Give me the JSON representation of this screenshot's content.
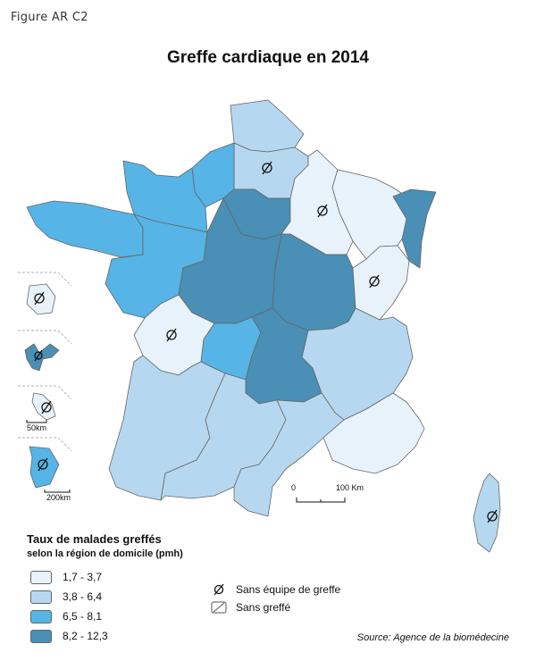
{
  "figure_label": "Figure AR C2",
  "title": "Greffe cardiaque en 2014",
  "legend": {
    "title": "Taux de malades greffés",
    "subtitle": "selon la région de domicile (pmh)",
    "classes": [
      {
        "label": "1,7 - 3,7",
        "color": "#e8f2fa"
      },
      {
        "label": "3,8 - 6,4",
        "color": "#b5d8f0"
      },
      {
        "label": "6,5 - 8,1",
        "color": "#56b4e6"
      },
      {
        "label": "8,2 - 12,3",
        "color": "#4a8fb5"
      }
    ],
    "symbols": [
      {
        "icon": "empty-set-icon",
        "label": "Sans équipe de greffe"
      },
      {
        "icon": "hatched-box-icon",
        "label": "Sans greffé"
      }
    ]
  },
  "scale": {
    "zero": "0",
    "label": "100 Km"
  },
  "inset_scales": [
    "50km",
    "200km"
  ],
  "regions": [
    {
      "name": "Nord-Pas-de-Calais",
      "class": 1,
      "no_team": false
    },
    {
      "name": "Picardie",
      "class": 1,
      "no_team": true
    },
    {
      "name": "Haute-Normandie",
      "class": 2,
      "no_team": false
    },
    {
      "name": "Basse-Normandie",
      "class": 2,
      "no_team": false
    },
    {
      "name": "Bretagne",
      "class": 2,
      "no_team": false
    },
    {
      "name": "Pays de la Loire",
      "class": 2,
      "no_team": false
    },
    {
      "name": "Ile-de-France",
      "class": 3,
      "no_team": false
    },
    {
      "name": "Centre",
      "class": 3,
      "no_team": false
    },
    {
      "name": "Champagne-Ardenne",
      "class": 0,
      "no_team": true
    },
    {
      "name": "Lorraine",
      "class": 0,
      "no_team": false
    },
    {
      "name": "Alsace",
      "class": 3,
      "no_team": false
    },
    {
      "name": "Bourgogne",
      "class": 3,
      "no_team": false
    },
    {
      "name": "Franche-Comté",
      "class": 0,
      "no_team": true
    },
    {
      "name": "Poitou-Charentes",
      "class": 0,
      "no_team": true
    },
    {
      "name": "Limousin",
      "class": 2,
      "no_team": false
    },
    {
      "name": "Auvergne",
      "class": 3,
      "no_team": false
    },
    {
      "name": "Rhône-Alpes",
      "class": 1,
      "no_team": false
    },
    {
      "name": "Aquitaine",
      "class": 1,
      "no_team": false
    },
    {
      "name": "Midi-Pyrénées",
      "class": 1,
      "no_team": false
    },
    {
      "name": "Languedoc-Roussillon",
      "class": 1,
      "no_team": false
    },
    {
      "name": "Provence-Alpes-Côte d'Azur",
      "class": 0,
      "no_team": false
    },
    {
      "name": "Corse",
      "class": 1,
      "no_team": true
    },
    {
      "name": "La Réunion",
      "class": 0,
      "no_team": true
    },
    {
      "name": "Guadeloupe",
      "class": 3,
      "no_team": true
    },
    {
      "name": "Martinique",
      "class": 0,
      "no_team": true
    },
    {
      "name": "Guyane",
      "class": 2,
      "no_team": true
    }
  ],
  "source": "Source: Agence de la biomédecine"
}
